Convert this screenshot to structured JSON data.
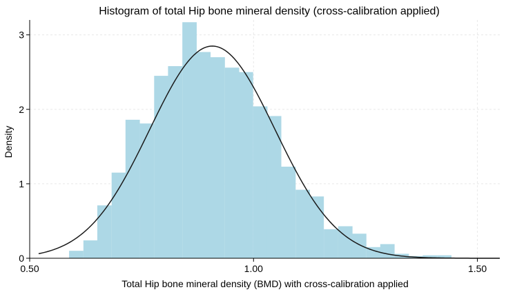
{
  "chart_data": {
    "type": "bar",
    "title": "Histogram of total Hip bone mineral density (cross-calibration applied)",
    "xlabel": "Total Hip bone mineral density (BMD) with cross-calibration applied",
    "ylabel": "Density",
    "xlim": [
      0.5,
      1.55
    ],
    "ylim": [
      0,
      3.2
    ],
    "x_ticks": [
      0.5,
      1.0,
      1.5
    ],
    "x_tick_labels": [
      "0.50",
      "1.00",
      "1.50"
    ],
    "y_ticks": [
      0,
      1,
      2,
      3
    ],
    "y_tick_labels": [
      "0",
      "1",
      "2",
      "3"
    ],
    "grid": true,
    "bin_width": 0.0316,
    "bin_starts": [
      0.588,
      0.62,
      0.651,
      0.683,
      0.714,
      0.746,
      0.778,
      0.809,
      0.841,
      0.872,
      0.904,
      0.936,
      0.967,
      0.999,
      1.03,
      1.062,
      1.094,
      1.125,
      1.157,
      1.189,
      1.22,
      1.252,
      1.283,
      1.315,
      1.347,
      1.378,
      1.41
    ],
    "density": [
      0.1,
      0.24,
      0.71,
      1.15,
      1.86,
      1.81,
      2.45,
      2.58,
      3.17,
      2.77,
      2.7,
      2.56,
      2.5,
      2.04,
      1.91,
      1.23,
      0.92,
      0.83,
      0.39,
      0.43,
      0.33,
      0.15,
      0.19,
      0.06,
      0.03,
      0.04,
      0.04
    ],
    "normal_curve": {
      "mean": 0.908,
      "sd": 0.14,
      "x_range": [
        0.52,
        1.55
      ]
    },
    "colors": {
      "bars": "#ADD8E6",
      "curve": "#1a1a1a"
    }
  }
}
